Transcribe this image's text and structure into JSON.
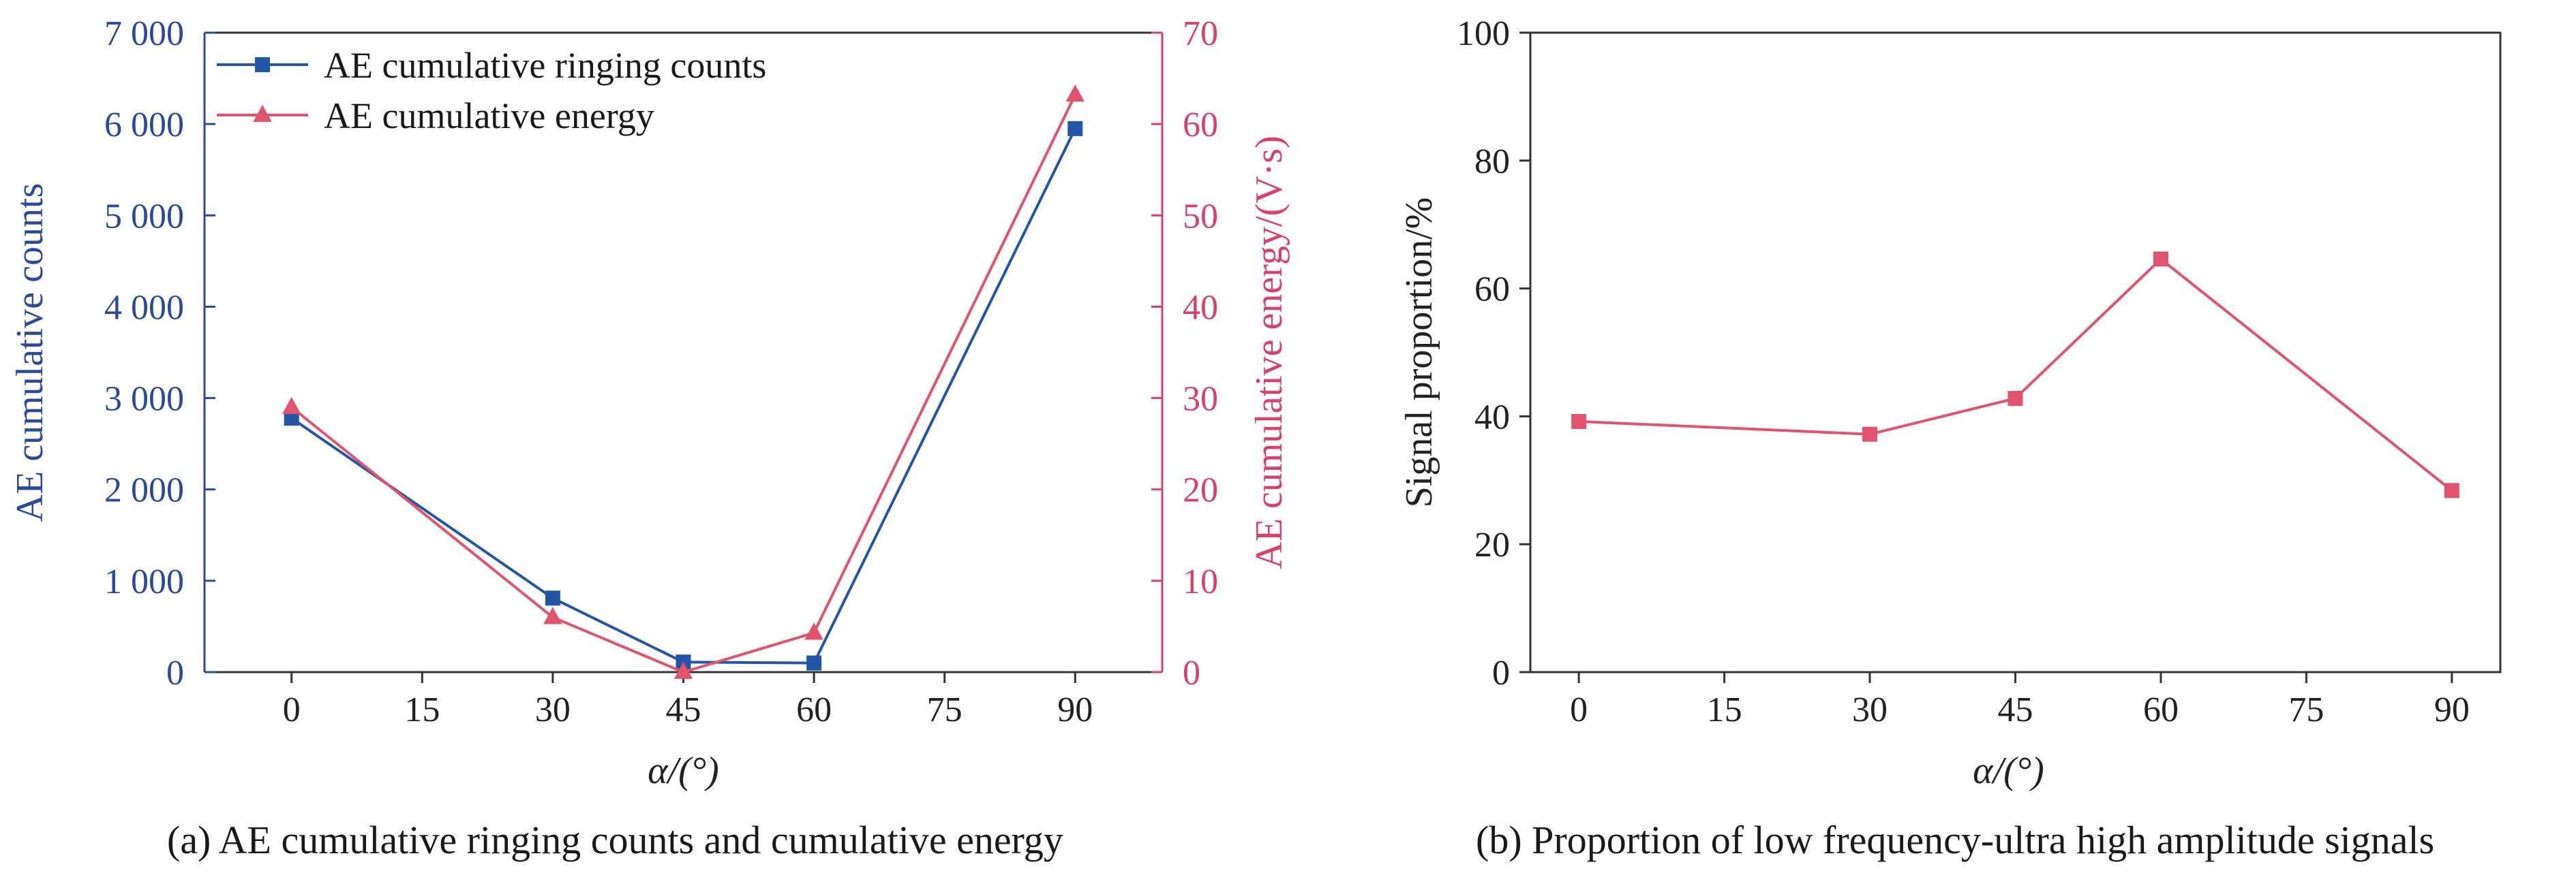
{
  "chart_data": [
    {
      "panel": "a",
      "type": "line",
      "caption": "(a) AE cumulative ringing counts and cumulative energy",
      "xlabel": "α/(°)",
      "x_ticks": [
        "0",
        "15",
        "30",
        "45",
        "60",
        "75",
        "90"
      ],
      "xlim": [
        -10,
        100
      ],
      "y_left": {
        "label": "AE cumulative counts",
        "ylim": [
          0,
          7000
        ],
        "ticks": [
          "0",
          "1 000",
          "2 000",
          "3 000",
          "4 000",
          "5 000",
          "6 000",
          "7 000"
        ],
        "color": "#2b4a9c"
      },
      "y_right": {
        "label": "AE cumulative energy/(V·s)",
        "ylim": [
          0,
          70
        ],
        "ticks": [
          "0",
          "10",
          "20",
          "30",
          "40",
          "50",
          "60",
          "70"
        ],
        "color": "#d9416a"
      },
      "series": [
        {
          "name": "AE cumulative ringing counts",
          "axis": "left",
          "marker": "square",
          "color": "#2356a6",
          "x": [
            0,
            30,
            45,
            60,
            90
          ],
          "y": [
            2780,
            810,
            110,
            100,
            5950
          ]
        },
        {
          "name": "AE cumulative energy",
          "axis": "right",
          "marker": "triangle",
          "color": "#e0546e",
          "x": [
            0,
            30,
            45,
            60,
            90
          ],
          "y": [
            29,
            6,
            0,
            4.3,
            63.2
          ]
        }
      ],
      "legend": "top-left",
      "grid": false
    },
    {
      "panel": "b",
      "type": "line",
      "caption": "(b) Proportion of low frequency-ultra high amplitude signals",
      "xlabel": "α/(°)",
      "ylabel": "Signal proportion/%",
      "x_ticks": [
        "0",
        "15",
        "30",
        "45",
        "60",
        "75",
        "90"
      ],
      "xlim": [
        -5,
        95
      ],
      "ylim": [
        0,
        100
      ],
      "y_ticks": [
        "0",
        "20",
        "40",
        "60",
        "80",
        "100"
      ],
      "series": [
        {
          "marker": "square",
          "color": "#e0546e",
          "x": [
            0,
            30,
            45,
            60,
            90
          ],
          "y": [
            39.2,
            37.2,
            42.8,
            64.6,
            28.4
          ]
        }
      ],
      "grid": false
    }
  ]
}
